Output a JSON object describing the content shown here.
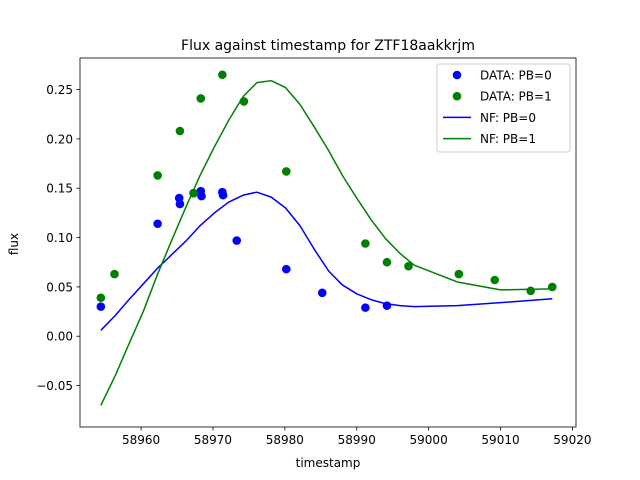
{
  "chart_data": {
    "type": "scatter",
    "title": "Flux against timestamp for ZTF18aakkrjm",
    "xlabel": "timestamp",
    "ylabel": "flux",
    "xlim": [
      58951.5,
      59020.5
    ],
    "ylim": [
      -0.092,
      0.282
    ],
    "xticks": [
      58960,
      58970,
      58980,
      58990,
      59000,
      59010,
      59020
    ],
    "yticks": [
      -0.05,
      0.0,
      0.05,
      0.1,
      0.15,
      0.2,
      0.25
    ],
    "xtick_labels": [
      "58960",
      "58970",
      "58980",
      "58990",
      "59000",
      "59010",
      "59020"
    ],
    "ytick_labels": [
      "−0.05",
      "0.00",
      "0.05",
      "0.10",
      "0.15",
      "0.20",
      "0.25"
    ],
    "grid": false,
    "legend_position": "top-right",
    "series": [
      {
        "name": "DATA: PB=0",
        "kind": "scatter",
        "color": "#0000ff",
        "points": [
          [
            58954.4,
            0.03
          ],
          [
            58962.3,
            0.114
          ],
          [
            58965.3,
            0.14
          ],
          [
            58965.4,
            0.134
          ],
          [
            58967.3,
            0.145
          ],
          [
            58968.3,
            0.147
          ],
          [
            58968.4,
            0.142
          ],
          [
            58971.3,
            0.146
          ],
          [
            58971.4,
            0.143
          ],
          [
            58973.3,
            0.097
          ],
          [
            58980.2,
            0.068
          ],
          [
            58985.2,
            0.044
          ],
          [
            58991.2,
            0.029
          ],
          [
            58994.2,
            0.031
          ]
        ]
      },
      {
        "name": "DATA: PB=1",
        "kind": "scatter",
        "color": "#008000",
        "points": [
          [
            58954.4,
            0.039
          ],
          [
            58956.3,
            0.063
          ],
          [
            58962.3,
            0.163
          ],
          [
            58965.4,
            0.208
          ],
          [
            58967.3,
            0.145
          ],
          [
            58968.3,
            0.241
          ],
          [
            58971.3,
            0.265
          ],
          [
            58974.3,
            0.238
          ],
          [
            58980.2,
            0.167
          ],
          [
            58991.2,
            0.094
          ],
          [
            58994.2,
            0.075
          ],
          [
            58997.2,
            0.071
          ],
          [
            59004.2,
            0.063
          ],
          [
            59009.2,
            0.057
          ],
          [
            59014.2,
            0.046
          ],
          [
            59017.2,
            0.05
          ]
        ]
      },
      {
        "name": "NF: PB=0",
        "kind": "line",
        "color": "#0000ff",
        "points": [
          [
            58954.4,
            0.006
          ],
          [
            58956.4,
            0.021
          ],
          [
            58958.3,
            0.037
          ],
          [
            58960.3,
            0.053
          ],
          [
            58962.3,
            0.069
          ],
          [
            58964.3,
            0.083
          ],
          [
            58966.3,
            0.097
          ],
          [
            58968.2,
            0.112
          ],
          [
            58970.2,
            0.125
          ],
          [
            58972.2,
            0.136
          ],
          [
            58974.2,
            0.143
          ],
          [
            58976.1,
            0.146
          ],
          [
            58978.1,
            0.141
          ],
          [
            58980.1,
            0.13
          ],
          [
            58982.1,
            0.112
          ],
          [
            58984.1,
            0.088
          ],
          [
            58986.1,
            0.066
          ],
          [
            58988.0,
            0.052
          ],
          [
            58990.0,
            0.043
          ],
          [
            58992.0,
            0.037
          ],
          [
            58994.0,
            0.033
          ],
          [
            58996.0,
            0.031
          ],
          [
            58998.0,
            0.03
          ],
          [
            59004.0,
            0.031
          ],
          [
            59010.0,
            0.034
          ],
          [
            59017.2,
            0.038
          ]
        ]
      },
      {
        "name": "NF: PB=1",
        "kind": "line",
        "color": "#008000",
        "points": [
          [
            58954.4,
            -0.07
          ],
          [
            58956.4,
            -0.04
          ],
          [
            58958.3,
            -0.008
          ],
          [
            58960.3,
            0.025
          ],
          [
            58962.3,
            0.063
          ],
          [
            58964.3,
            0.098
          ],
          [
            58966.3,
            0.132
          ],
          [
            58968.2,
            0.163
          ],
          [
            58970.2,
            0.192
          ],
          [
            58972.2,
            0.219
          ],
          [
            58974.2,
            0.243
          ],
          [
            58976.1,
            0.257
          ],
          [
            58978.1,
            0.259
          ],
          [
            58980.1,
            0.252
          ],
          [
            58982.1,
            0.235
          ],
          [
            58984.1,
            0.212
          ],
          [
            58986.1,
            0.188
          ],
          [
            58988.0,
            0.163
          ],
          [
            58990.0,
            0.14
          ],
          [
            58992.0,
            0.118
          ],
          [
            58994.0,
            0.099
          ],
          [
            58996.0,
            0.084
          ],
          [
            58998.0,
            0.072
          ],
          [
            59004.0,
            0.055
          ],
          [
            59010.0,
            0.047
          ],
          [
            59017.2,
            0.048
          ]
        ]
      }
    ]
  }
}
